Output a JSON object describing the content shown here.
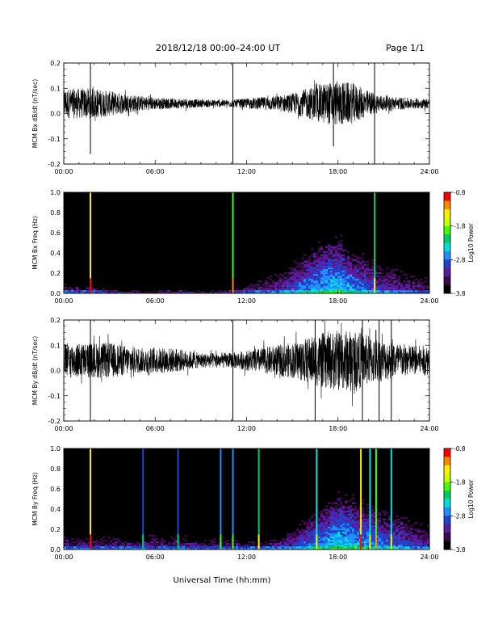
{
  "header": {
    "title": "2018/12/18   00:00–24:00 UT",
    "page": "Page 1/1"
  },
  "colors": {
    "trace": "#000000",
    "background": "#ffffff",
    "spectrogram_background": "#000000",
    "colormap": [
      "#000000",
      "#3a0a4a",
      "#5a1a9a",
      "#2244cc",
      "#1e90ff",
      "#00e0e0",
      "#00cc66",
      "#44ff00",
      "#ccff00",
      "#ffee00",
      "#ff8800",
      "#ff0000"
    ]
  },
  "xlabel": "Universal Time (hh:mm)",
  "chart_data": [
    {
      "type": "line",
      "ylabel": "MCM Bx dB/dt (nT/sec)",
      "xlim": [
        0,
        24
      ],
      "ylim": [
        -0.2,
        0.2
      ],
      "x_ticks": [
        "00:00",
        "06:00",
        "12:00",
        "18:00",
        "24:00"
      ],
      "y_ticks": [
        "-0.2",
        "-0.1",
        "0.0",
        "0.1",
        "0.2"
      ],
      "grid": false,
      "baseline": 0.04,
      "envelope": {
        "x": [
          0,
          1,
          2,
          3,
          4,
          5,
          6,
          7,
          8,
          9,
          10,
          11,
          12,
          13,
          14,
          15,
          16,
          17,
          18,
          19,
          20,
          21,
          22,
          23,
          24
        ],
        "amplitude": [
          0.06,
          0.06,
          0.06,
          0.05,
          0.04,
          0.03,
          0.025,
          0.02,
          0.02,
          0.015,
          0.015,
          0.015,
          0.02,
          0.025,
          0.03,
          0.04,
          0.06,
          0.08,
          0.09,
          0.08,
          0.05,
          0.03,
          0.025,
          0.02,
          0.02
        ]
      },
      "spikes": [
        {
          "x": 1.75,
          "ymin": -0.16,
          "ymax": 0.2
        },
        {
          "x": 11.1,
          "ymin": -0.2,
          "ymax": 0.2
        },
        {
          "x": 17.7,
          "ymin": -0.13,
          "ymax": 0.2
        },
        {
          "x": 20.4,
          "ymin": -0.2,
          "ymax": 0.2
        }
      ]
    },
    {
      "type": "heatmap",
      "ylabel": "MCM Bx Freq (Hz)",
      "xlim": [
        0,
        24
      ],
      "ylim": [
        0,
        1.0
      ],
      "x_ticks": [
        "00:00",
        "06:00",
        "12:00",
        "18:00",
        "24:00"
      ],
      "y_ticks": [
        "0.0",
        "0.2",
        "0.4",
        "0.6",
        "0.8",
        "1.0"
      ],
      "colorbar": {
        "label": "Log10 Power",
        "range": [
          -3.8,
          -0.8
        ],
        "ticks": [
          "-0.8",
          "-1.8",
          "-2.8",
          "-3.8"
        ]
      },
      "activity": {
        "x": [
          0,
          1,
          2,
          3,
          4,
          5,
          6,
          7,
          8,
          9,
          10,
          11,
          12,
          13,
          14,
          15,
          16,
          17,
          18,
          19,
          20,
          21,
          22,
          23,
          24
        ],
        "upper_freq": [
          0.2,
          0.2,
          0.15,
          0.1,
          0.08,
          0.06,
          0.06,
          0.08,
          0.08,
          0.06,
          0.06,
          0.1,
          0.2,
          0.25,
          0.3,
          0.35,
          0.45,
          0.5,
          0.5,
          0.45,
          0.45,
          0.45,
          0.45,
          0.4,
          0.4
        ],
        "peak_power": [
          -2.9,
          -3.0,
          -3.0,
          -3.2,
          -3.3,
          -3.4,
          -3.4,
          -3.3,
          -3.3,
          -3.4,
          -3.4,
          -3.2,
          -3.0,
          -2.9,
          -2.8,
          -2.6,
          -2.4,
          -2.2,
          -2.1,
          -2.4,
          -2.6,
          -2.8,
          -2.9,
          -3.0,
          -3.1
        ]
      },
      "vertical_lines": [
        {
          "x": 1.75,
          "power": -1.4
        },
        {
          "x": 11.1,
          "power": -1.8
        },
        {
          "x": 20.4,
          "power": -2.2
        }
      ]
    },
    {
      "type": "line",
      "ylabel": "MCM By dB/dt (nT/sec)",
      "xlim": [
        0,
        24
      ],
      "ylim": [
        -0.2,
        0.2
      ],
      "x_ticks": [
        "00:00",
        "06:00",
        "12:00",
        "18:00",
        "24:00"
      ],
      "y_ticks": [
        "-0.2",
        "-0.1",
        "0.0",
        "0.1",
        "0.2"
      ],
      "grid": false,
      "baseline": 0.04,
      "envelope": {
        "x": [
          0,
          1,
          2,
          3,
          4,
          5,
          6,
          7,
          8,
          9,
          10,
          11,
          12,
          13,
          14,
          15,
          16,
          17,
          18,
          19,
          20,
          21,
          22,
          23,
          24
        ],
        "amplitude": [
          0.07,
          0.07,
          0.07,
          0.07,
          0.06,
          0.05,
          0.05,
          0.05,
          0.04,
          0.03,
          0.03,
          0.03,
          0.04,
          0.05,
          0.06,
          0.07,
          0.09,
          0.11,
          0.12,
          0.12,
          0.1,
          0.08,
          0.07,
          0.06,
          0.06
        ]
      },
      "spikes": [
        {
          "x": 1.75,
          "ymin": -0.2,
          "ymax": 0.2
        },
        {
          "x": 11.1,
          "ymin": -0.2,
          "ymax": 0.2
        },
        {
          "x": 16.5,
          "ymin": -0.2,
          "ymax": 0.2
        },
        {
          "x": 19.6,
          "ymin": -0.2,
          "ymax": 0.2
        },
        {
          "x": 20.7,
          "ymin": -0.2,
          "ymax": 0.2
        },
        {
          "x": 21.5,
          "ymin": -0.2,
          "ymax": 0.2
        }
      ]
    },
    {
      "type": "heatmap",
      "ylabel": "MCM By Freq (Hz)",
      "xlim": [
        0,
        24
      ],
      "ylim": [
        0,
        1.0
      ],
      "x_ticks": [
        "00:00",
        "06:00",
        "12:00",
        "18:00",
        "24:00"
      ],
      "y_ticks": [
        "0.0",
        "0.2",
        "0.4",
        "0.6",
        "0.8",
        "1.0"
      ],
      "colorbar": {
        "label": "Log10 Power",
        "range": [
          -3.8,
          -0.8
        ],
        "ticks": [
          "-0.8",
          "-1.8",
          "-2.8",
          "-3.8"
        ]
      },
      "activity": {
        "x": [
          0,
          1,
          2,
          3,
          4,
          5,
          6,
          7,
          8,
          9,
          10,
          11,
          12,
          13,
          14,
          15,
          16,
          17,
          18,
          19,
          20,
          21,
          22,
          23,
          24
        ],
        "upper_freq": [
          0.25,
          0.25,
          0.25,
          0.25,
          0.25,
          0.25,
          0.3,
          0.3,
          0.3,
          0.3,
          0.3,
          0.25,
          0.2,
          0.15,
          0.2,
          0.3,
          0.4,
          0.45,
          0.5,
          0.5,
          0.5,
          0.45,
          0.45,
          0.45,
          0.45
        ],
        "peak_power": [
          -2.9,
          -3.0,
          -3.0,
          -3.0,
          -3.0,
          -3.0,
          -3.0,
          -3.0,
          -3.0,
          -3.1,
          -3.1,
          -3.0,
          -3.0,
          -3.0,
          -2.9,
          -2.8,
          -2.5,
          -2.3,
          -2.1,
          -2.2,
          -2.4,
          -2.5,
          -2.6,
          -2.8,
          -2.9
        ]
      },
      "vertical_lines": [
        {
          "x": 1.75,
          "power": -1.4
        },
        {
          "x": 5.2,
          "power": -3.0
        },
        {
          "x": 7.5,
          "power": -3.0
        },
        {
          "x": 10.3,
          "power": -2.8
        },
        {
          "x": 11.1,
          "power": -2.6
        },
        {
          "x": 12.8,
          "power": -2.2
        },
        {
          "x": 16.6,
          "power": -2.4
        },
        {
          "x": 19.5,
          "power": -1.4
        },
        {
          "x": 20.1,
          "power": -2.4
        },
        {
          "x": 20.5,
          "power": -2.0
        },
        {
          "x": 21.5,
          "power": -2.4
        }
      ]
    }
  ]
}
